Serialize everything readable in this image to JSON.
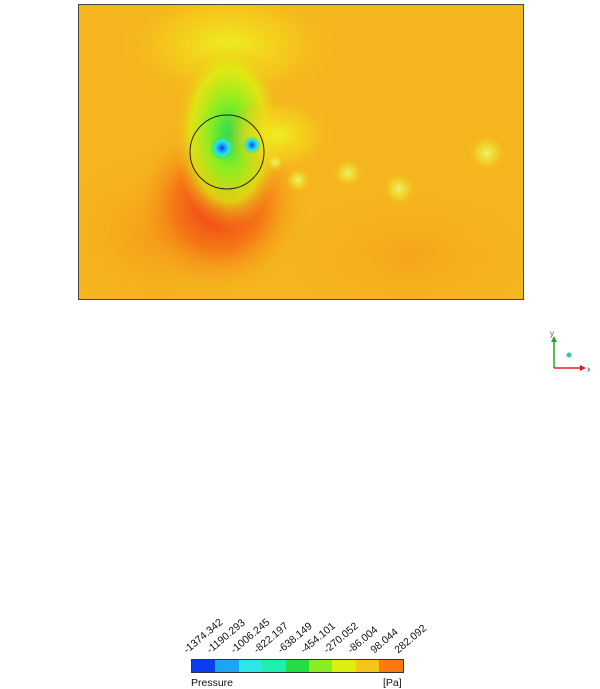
{
  "legend": {
    "title": "Pressure",
    "unit": "[Pa]",
    "ticks": [
      "-1374.342",
      "-1190.293",
      "-1006.245",
      "-822.197",
      "-638.149",
      "-454.101",
      "-270.052",
      "-86.004",
      "98.044",
      "282.092"
    ],
    "colors": [
      "#0a3cf0",
      "#1aa6f2",
      "#2ee6e6",
      "#1eeeb0",
      "#22dd44",
      "#88ee22",
      "#ddee11",
      "#f6c418",
      "#fa7a10"
    ]
  },
  "triad": {
    "x_label": "x",
    "y_label": "y",
    "x_color": "#e02020",
    "y_color": "#1fa52a"
  },
  "field_colors": {
    "base": "#f5b51e",
    "high": "#f0401a",
    "low": "#22cc55",
    "cylinder_outline": "#222222"
  }
}
